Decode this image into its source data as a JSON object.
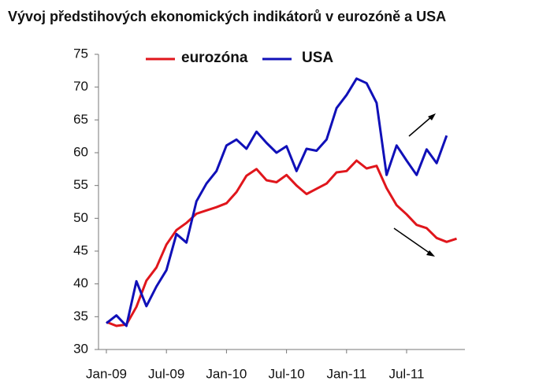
{
  "chart_data": {
    "type": "line",
    "title": "Vývoj předstihových ekonomických indikátorů v eurozóně a USA",
    "categories": [
      "Jan-09",
      null,
      null,
      null,
      null,
      null,
      "Jul-09",
      null,
      null,
      null,
      null,
      null,
      "Jan-10",
      null,
      null,
      null,
      null,
      null,
      "Jul-10",
      null,
      null,
      null,
      null,
      null,
      "Jan-11",
      null,
      null,
      null,
      null,
      null,
      "Jul-11",
      null,
      null,
      null,
      null,
      null
    ],
    "series": [
      {
        "name": "eurozóna",
        "color": "#e0161c",
        "values": [
          34.2,
          33.6,
          33.8,
          36.5,
          40.5,
          42.5,
          46,
          48.2,
          49.3,
          50.7,
          51.2,
          51.7,
          52.3,
          54,
          56.5,
          57.5,
          55.8,
          55.5,
          56.6,
          55,
          53.7,
          54.5,
          55.3,
          57,
          57.2,
          58.8,
          57.6,
          58,
          54.6,
          52,
          50.6,
          49,
          48.5,
          47,
          46.4,
          46.9
        ]
      },
      {
        "name": "USA",
        "color": "#1010b8",
        "values": [
          34,
          35.2,
          33.6,
          40.4,
          36.6,
          39.6,
          42.1,
          47.6,
          46.3,
          52.6,
          55.3,
          57.2,
          61.1,
          62,
          60.6,
          63.2,
          61.5,
          60,
          61,
          57.2,
          60.6,
          60.3,
          62,
          66.8,
          68.8,
          71.3,
          70.6,
          67.6,
          56.6,
          61.1,
          58.8,
          56.6,
          60.5,
          58.4,
          62.6,
          null
        ]
      }
    ],
    "ylim": [
      30,
      75
    ],
    "yticks": [
      30,
      35,
      40,
      45,
      50,
      55,
      60,
      65,
      70,
      75
    ]
  }
}
